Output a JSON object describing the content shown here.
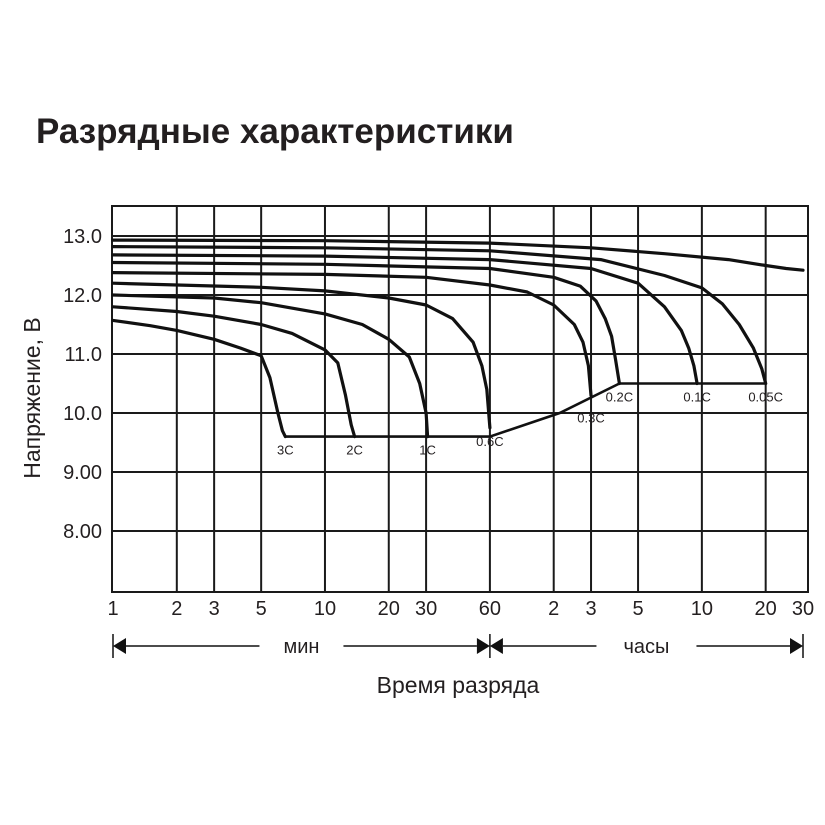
{
  "title": "Разрядные характеристики",
  "chart_data": {
    "type": "line",
    "title": "Разрядные характеристики",
    "ylabel": "Напряжение, В",
    "xlabel": "Время разряда",
    "x_scale": "log",
    "x_unit_note": "x values in minutes",
    "ylim": [
      7.0,
      13.5
    ],
    "y_ticks": [
      "13.0",
      "12.0",
      "11.0",
      "10.0",
      "9.00",
      "8.00"
    ],
    "y_tick_values": [
      13.0,
      12.0,
      11.0,
      10.0,
      9.0,
      8.0
    ],
    "x_tick_labels": [
      "1",
      "2",
      "3",
      "5",
      "10",
      "20",
      "30",
      "60",
      "2",
      "3",
      "5",
      "10",
      "20",
      "30"
    ],
    "x_tick_minutes": [
      1,
      2,
      3,
      5,
      10,
      20,
      30,
      60,
      120,
      180,
      300,
      600,
      1200,
      1800
    ],
    "range_labels": {
      "minutes": "мин",
      "hours": "часы"
    },
    "grid": true,
    "series": [
      {
        "name": "3C",
        "x": [
          1,
          1.5,
          2,
          3,
          4,
          5,
          5.5,
          6,
          6.3,
          6.5
        ],
        "y": [
          11.57,
          11.48,
          11.4,
          11.25,
          11.1,
          10.97,
          10.6,
          10.0,
          9.7,
          9.6
        ]
      },
      {
        "name": "2C",
        "x": [
          1,
          2,
          3,
          5,
          7,
          10,
          11.5,
          12.5,
          13.3,
          13.8
        ],
        "y": [
          11.8,
          11.72,
          11.64,
          11.5,
          11.35,
          11.07,
          10.85,
          10.3,
          9.8,
          9.6
        ]
      },
      {
        "name": "1C",
        "x": [
          1,
          3,
          5,
          10,
          15,
          20,
          25,
          28,
          30,
          30.5
        ],
        "y": [
          12.0,
          11.95,
          11.87,
          11.68,
          11.5,
          11.25,
          10.95,
          10.5,
          10.0,
          9.6
        ]
      },
      {
        "name": "0.6C",
        "x": [
          1,
          5,
          10,
          20,
          30,
          40,
          50,
          55,
          58,
          60
        ],
        "y": [
          12.2,
          12.13,
          12.07,
          11.95,
          11.83,
          11.6,
          11.2,
          10.8,
          10.4,
          9.75
        ]
      },
      {
        "name": "0.3C",
        "x": [
          1,
          10,
          30,
          60,
          90,
          120,
          150,
          165,
          175,
          180
        ],
        "y": [
          12.38,
          12.35,
          12.3,
          12.17,
          12.05,
          11.83,
          11.5,
          11.2,
          10.8,
          10.3
        ]
      },
      {
        "name": "0.2C",
        "x": [
          1,
          10,
          60,
          120,
          160,
          190,
          210,
          225,
          235,
          245
        ],
        "y": [
          12.55,
          12.52,
          12.45,
          12.3,
          12.15,
          11.9,
          11.6,
          11.3,
          10.9,
          10.5
        ]
      },
      {
        "name": "0.1C",
        "x": [
          1,
          10,
          60,
          180,
          300,
          400,
          480,
          520,
          550,
          570
        ],
        "y": [
          12.68,
          12.66,
          12.6,
          12.45,
          12.2,
          11.8,
          11.4,
          11.1,
          10.8,
          10.5
        ]
      },
      {
        "name": "0.05C",
        "x": [
          1,
          10,
          60,
          200,
          400,
          600,
          750,
          900,
          1050,
          1150,
          1200
        ],
        "y": [
          12.82,
          12.8,
          12.75,
          12.6,
          12.33,
          12.12,
          11.85,
          11.5,
          11.1,
          10.75,
          10.5
        ]
      },
      {
        "name": "",
        "x": [
          1,
          10,
          60,
          180,
          400,
          800,
          1200,
          1500,
          1800
        ],
        "y": [
          12.93,
          12.92,
          12.88,
          12.8,
          12.7,
          12.6,
          12.5,
          12.45,
          12.42
        ]
      }
    ],
    "cutoff_voltage_line": {
      "x": [
        6.5,
        60,
        128,
        245,
        1200
      ],
      "y": [
        9.6,
        9.6,
        10.0,
        10.5,
        10.5
      ]
    }
  }
}
